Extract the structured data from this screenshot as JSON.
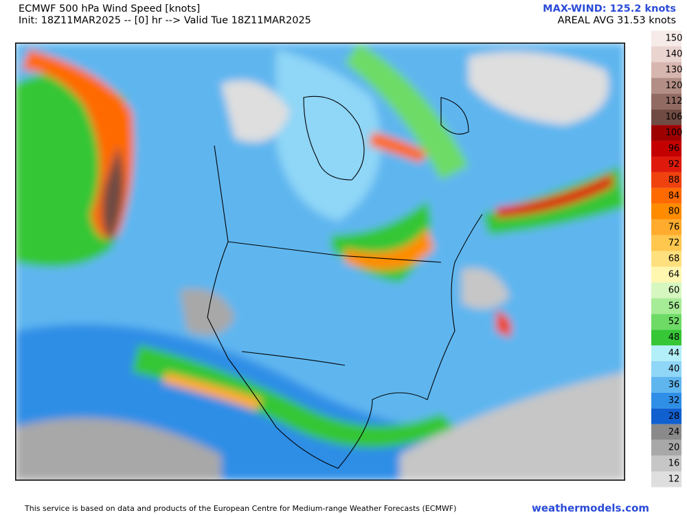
{
  "header": {
    "title": "ECMWF 500 hPa Wind Speed [knots]",
    "subtitle": "Init: 18Z11MAR2025 -- [0] hr --> Valid Tue 18Z11MAR2025",
    "max_wind": "MAX-WIND: 125.2 knots",
    "areal_avg": "AREAL AVG 31.53 knots"
  },
  "legend": {
    "items": [
      {
        "label": 150,
        "color": "#f6ebe9"
      },
      {
        "label": 140,
        "color": "#ead4d0"
      },
      {
        "label": 130,
        "color": "#d8b6b0"
      },
      {
        "label": 120,
        "color": "#b38e86"
      },
      {
        "label": 112,
        "color": "#916a62"
      },
      {
        "label": 106,
        "color": "#6f4b43"
      },
      {
        "label": 100,
        "color": "#9e0000"
      },
      {
        "label": 96,
        "color": "#c40000"
      },
      {
        "label": 92,
        "color": "#df1a0c"
      },
      {
        "label": 88,
        "color": "#f0420e"
      },
      {
        "label": 84,
        "color": "#ff6a00"
      },
      {
        "label": 80,
        "color": "#ff8c00"
      },
      {
        "label": 76,
        "color": "#ffab2e"
      },
      {
        "label": 72,
        "color": "#ffc74e"
      },
      {
        "label": 68,
        "color": "#ffe07e"
      },
      {
        "label": 64,
        "color": "#fff7b0"
      },
      {
        "label": 60,
        "color": "#d6f7c0"
      },
      {
        "label": 56,
        "color": "#a6eb96"
      },
      {
        "label": 52,
        "color": "#6ddb66"
      },
      {
        "label": 48,
        "color": "#36c636"
      },
      {
        "label": 44,
        "color": "#b2eff8"
      },
      {
        "label": 40,
        "color": "#8fd6f7"
      },
      {
        "label": 36,
        "color": "#5fb6ef"
      },
      {
        "label": 32,
        "color": "#2f8ee6"
      },
      {
        "label": 28,
        "color": "#1060d0"
      },
      {
        "label": 24,
        "color": "#8a8a8a"
      },
      {
        "label": 20,
        "color": "#a8a8a8"
      },
      {
        "label": 16,
        "color": "#c6c6c6"
      },
      {
        "label": 12,
        "color": "#dedede"
      }
    ]
  },
  "footer": {
    "text": "This service is based on data and products of the European Centre for Medium-range Weather Forecasts (ECMWF)",
    "site": "weathermodels.com"
  }
}
